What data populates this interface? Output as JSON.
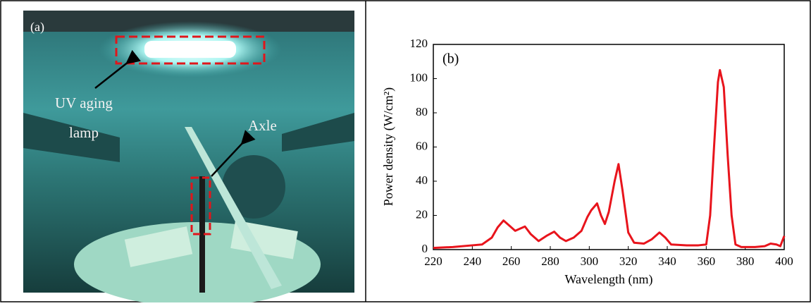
{
  "panel_a": {
    "label": "(a)",
    "annotations": [
      "UV aging",
      "lamp",
      "Axle"
    ]
  },
  "chart_data": {
    "type": "line",
    "panel_label": "(b)",
    "x_label": "Wavelength (nm)",
    "y_label": "Power density (W/cm²)",
    "x": [
      220,
      230,
      240,
      245,
      250,
      253,
      256,
      259,
      262,
      264,
      267,
      270,
      274,
      278,
      282,
      285,
      288,
      292,
      296,
      299,
      301,
      304,
      306,
      308,
      310,
      313,
      315,
      317,
      320,
      323,
      328,
      332,
      336,
      339,
      342,
      350,
      356,
      360,
      362,
      364,
      366,
      367,
      369,
      371,
      373,
      375,
      378,
      385,
      390,
      393,
      396,
      398,
      400
    ],
    "values": [
      1,
      1.5,
      2.5,
      3,
      7,
      13,
      17,
      14,
      11,
      12,
      13.5,
      9,
      5,
      8,
      10.5,
      7,
      5,
      7,
      11,
      19,
      23,
      27,
      20,
      15,
      22,
      40,
      50,
      35,
      10,
      4,
      3.5,
      6,
      10,
      7,
      3,
      2.5,
      2.5,
      3,
      20,
      60,
      98,
      105,
      95,
      55,
      20,
      3,
      1.5,
      1.5,
      2,
      3.5,
      3,
      2,
      8
    ],
    "color": "#e8141c",
    "xlim": [
      220,
      400
    ],
    "xticks": [
      220,
      240,
      260,
      280,
      300,
      320,
      340,
      360,
      380,
      400
    ],
    "ylim": [
      0,
      120
    ],
    "yticks": [
      0,
      20,
      40,
      60,
      80,
      100,
      120
    ],
    "grid": false
  }
}
